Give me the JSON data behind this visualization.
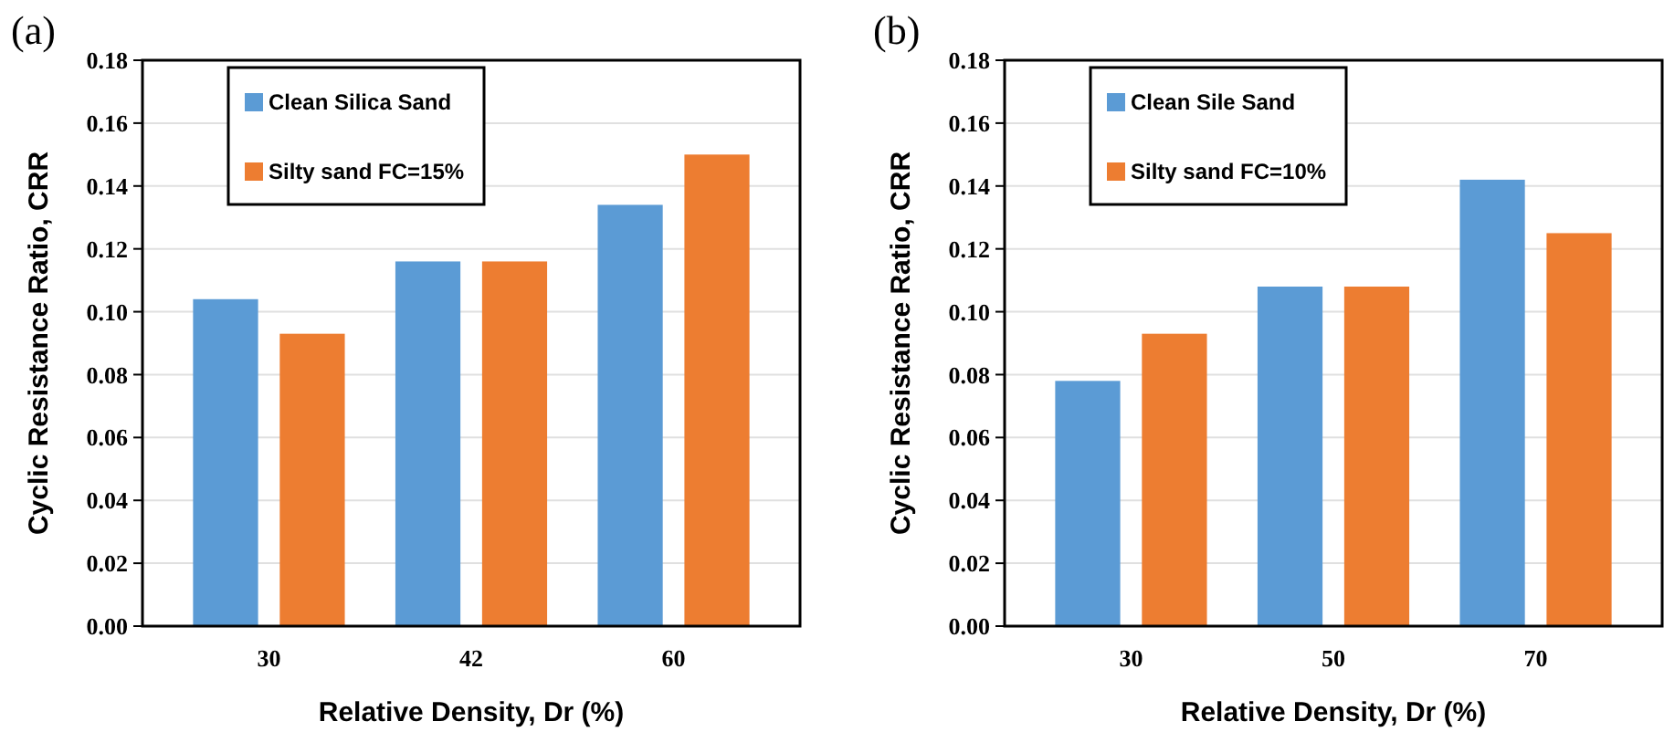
{
  "chart_data": [
    {
      "type": "bar",
      "title": "(a)",
      "xlabel": "Relative Density, Dr (%)",
      "ylabel": "Cyclic Resistance Ratio, CRR",
      "categories": [
        "30",
        "42",
        "60"
      ],
      "series": [
        {
          "name": "Clean Silica Sand",
          "color": "#5b9bd5",
          "values": [
            0.104,
            0.116,
            0.134
          ]
        },
        {
          "name": "Silty sand FC=15%",
          "color": "#ed7d31",
          "values": [
            0.093,
            0.116,
            0.15
          ]
        }
      ],
      "ylim": [
        0,
        0.18
      ],
      "yticks": [
        {
          "value": 0,
          "label": "0.00"
        },
        {
          "value": 0.02,
          "label": "0.02"
        },
        {
          "value": 0.04,
          "label": "0.04"
        },
        {
          "value": 0.06,
          "label": "0.06"
        },
        {
          "value": 0.08,
          "label": "0.08"
        },
        {
          "value": 0.1,
          "label": "0.10"
        },
        {
          "value": 0.12,
          "label": "0.12"
        },
        {
          "value": 0.14,
          "label": "0.14"
        },
        {
          "value": 0.16,
          "label": "0.16"
        },
        {
          "value": 0.18,
          "label": "0.18"
        }
      ],
      "grid": "y",
      "legend": "top left"
    },
    {
      "type": "bar",
      "title": "(b)",
      "xlabel": "Relative Density, Dr (%)",
      "ylabel": "Cyclic Resistance Ratio, CRR",
      "categories": [
        "30",
        "50",
        "70"
      ],
      "series": [
        {
          "name": "Clean Sile Sand",
          "color": "#5b9bd5",
          "values": [
            0.078,
            0.108,
            0.142
          ]
        },
        {
          "name": "Silty sand FC=10%",
          "color": "#ed7d31",
          "values": [
            0.093,
            0.108,
            0.125
          ]
        }
      ],
      "ylim": [
        0,
        0.18
      ],
      "yticks": [
        {
          "value": 0,
          "label": "0.00"
        },
        {
          "value": 0.02,
          "label": "0.02"
        },
        {
          "value": 0.04,
          "label": "0.04"
        },
        {
          "value": 0.06,
          "label": "0.06"
        },
        {
          "value": 0.08,
          "label": "0.08"
        },
        {
          "value": 0.1,
          "label": "0.10"
        },
        {
          "value": 0.12,
          "label": "0.12"
        },
        {
          "value": 0.14,
          "label": "0.14"
        },
        {
          "value": 0.16,
          "label": "0.16"
        },
        {
          "value": 0.18,
          "label": "0.18"
        }
      ],
      "grid": "y",
      "legend": "top left"
    }
  ]
}
